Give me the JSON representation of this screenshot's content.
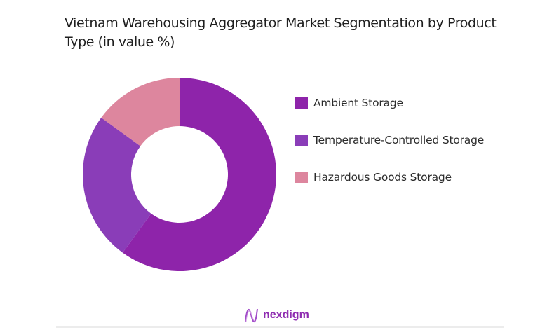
{
  "title": "Vietnam Warehousing Aggregator Market Segmentation by Product Type (in value %)",
  "chart_data": {
    "type": "pie",
    "variant": "donut",
    "title": "Vietnam Warehousing Aggregator Market Segmentation by Product Type (in value %)",
    "categories": [
      "Ambient Storage",
      "Temperature-Controlled Storage",
      "Hazardous Goods Storage"
    ],
    "values": [
      60,
      25,
      15
    ],
    "colors": [
      "#8E24AA",
      "#8A3DB8",
      "#DD869E"
    ],
    "legend_position": "right",
    "start_angle": "top, clockwise"
  },
  "legend": {
    "items": [
      {
        "label": "Ambient Storage",
        "color": "#8E24AA"
      },
      {
        "label": "Temperature-Controlled Storage",
        "color": "#8A3DB8"
      },
      {
        "label": "Hazardous Goods Storage",
        "color": "#DD869E"
      }
    ]
  },
  "brand": {
    "name": "nexdigm",
    "color": "#8E2BB0"
  }
}
